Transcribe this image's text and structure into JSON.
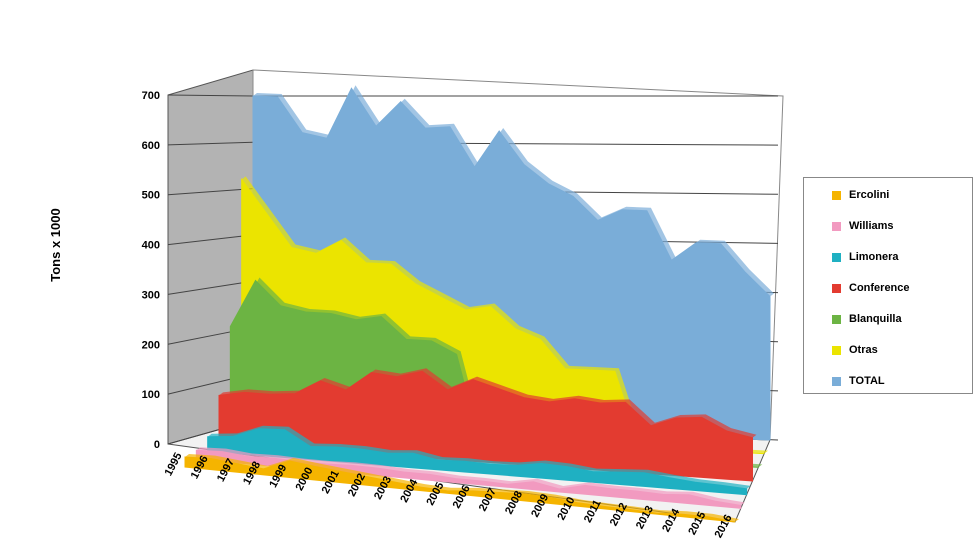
{
  "chart_data": {
    "type": "area",
    "style": "3d-layered-area",
    "ylabel": "Tons x 1000",
    "ylim": [
      0,
      700
    ],
    "yticks": [
      0,
      100,
      200,
      300,
      400,
      500,
      600,
      700
    ],
    "categories": [
      "1995",
      "1996",
      "1997",
      "1998",
      "1999",
      "2000",
      "2001",
      "2002",
      "2003",
      "2004",
      "2005",
      "2006",
      "2007",
      "2008",
      "2009",
      "2010",
      "2011",
      "2012",
      "2013",
      "2014",
      "2015",
      "2016"
    ],
    "grid": true,
    "legend_position": "right",
    "series": [
      {
        "name": "Ercolini",
        "color": "#f5b400",
        "values": [
          20,
          22,
          17,
          12,
          33,
          27,
          22,
          17,
          12,
          7,
          5,
          10,
          12,
          14,
          12,
          7,
          5,
          4,
          2,
          5,
          5,
          0
        ]
      },
      {
        "name": "Williams",
        "color": "#f29ac0",
        "values": [
          18,
          20,
          15,
          16,
          14,
          14,
          16,
          15,
          12,
          12,
          8,
          8,
          6,
          16,
          6,
          18,
          16,
          16,
          14,
          18,
          10,
          6
        ]
      },
      {
        "name": "Limonera",
        "color": "#1fb0c2",
        "values": [
          30,
          35,
          55,
          57,
          27,
          30,
          30,
          26,
          30,
          20,
          22,
          20,
          22,
          30,
          28,
          22,
          25,
          28,
          22,
          17,
          15,
          12
        ]
      },
      {
        "name": "Conference",
        "color": "#e33b30",
        "values": [
          100,
          110,
          110,
          115,
          145,
          130,
          170,
          165,
          180,
          145,
          170,
          155,
          140,
          135,
          145,
          140,
          145,
          100,
          120,
          125,
          100,
          90
        ]
      },
      {
        "name": "Blanquilla",
        "color": "#6cb443",
        "values": [
          230,
          330,
          280,
          270,
          270,
          260,
          270,
          225,
          225,
          200,
          0,
          0,
          0,
          0,
          0,
          0,
          0,
          0,
          0,
          0,
          0,
          0
        ]
      },
      {
        "name": "Otras",
        "color": "#ebe400",
        "values": [
          530,
          460,
          390,
          380,
          410,
          365,
          365,
          325,
          300,
          275,
          285,
          240,
          220,
          160,
          160,
          160,
          0,
          0,
          0,
          0,
          0,
          0
        ]
      },
      {
        "name": "TOTAL",
        "color": "#7aadd8",
        "values": [
          700,
          700,
          625,
          615,
          725,
          645,
          700,
          645,
          650,
          565,
          645,
          575,
          535,
          510,
          460,
          485,
          485,
          380,
          420,
          420,
          360,
          310
        ]
      }
    ]
  }
}
